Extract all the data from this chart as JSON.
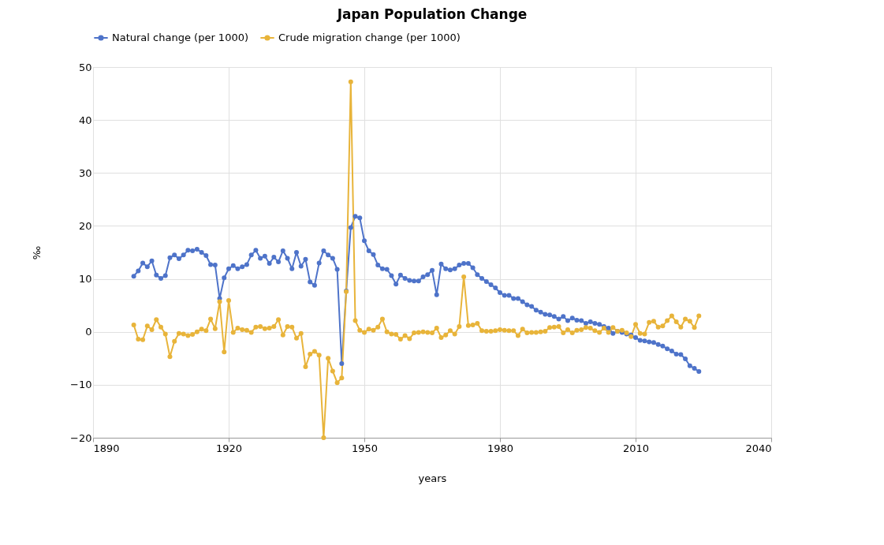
{
  "chart_data": {
    "type": "line",
    "title": "Japan Population Change",
    "xlabel": "years",
    "ylabel": "‰",
    "x": [
      1899,
      1900,
      1901,
      1902,
      1903,
      1904,
      1905,
      1906,
      1907,
      1908,
      1909,
      1910,
      1911,
      1912,
      1913,
      1914,
      1915,
      1916,
      1917,
      1918,
      1919,
      1920,
      1921,
      1922,
      1923,
      1924,
      1925,
      1926,
      1927,
      1928,
      1929,
      1930,
      1931,
      1932,
      1933,
      1934,
      1935,
      1936,
      1937,
      1938,
      1939,
      1940,
      1941,
      1942,
      1943,
      1944,
      1945,
      1946,
      1947,
      1948,
      1949,
      1950,
      1951,
      1952,
      1953,
      1954,
      1955,
      1956,
      1957,
      1958,
      1959,
      1960,
      1961,
      1962,
      1963,
      1964,
      1965,
      1966,
      1967,
      1968,
      1969,
      1970,
      1971,
      1972,
      1973,
      1974,
      1975,
      1976,
      1977,
      1978,
      1979,
      1980,
      1981,
      1982,
      1983,
      1984,
      1985,
      1986,
      1987,
      1988,
      1989,
      1990,
      1991,
      1992,
      1993,
      1994,
      1995,
      1996,
      1997,
      1998,
      1999,
      2000,
      2001,
      2002,
      2003,
      2004,
      2005,
      2006,
      2007,
      2008,
      2009,
      2010,
      2011,
      2012,
      2013,
      2014,
      2015,
      2016,
      2017,
      2018,
      2019,
      2020,
      2021,
      2022,
      2023,
      2024
    ],
    "series": [
      {
        "name": "Natural change (per 1000)",
        "color": "#4e73c9",
        "values": [
          10.5,
          11.5,
          13.0,
          12.3,
          13.4,
          10.7,
          10.1,
          10.6,
          14.0,
          14.5,
          13.8,
          14.5,
          15.4,
          15.3,
          15.6,
          15.0,
          14.4,
          12.7,
          12.6,
          6.3,
          10.2,
          11.9,
          12.5,
          11.9,
          12.3,
          12.7,
          14.5,
          15.4,
          13.9,
          14.3,
          12.9,
          14.1,
          13.2,
          15.3,
          13.9,
          11.9,
          15.0,
          12.4,
          13.7,
          9.4,
          8.8,
          13.0,
          15.3,
          14.5,
          13.9,
          11.8,
          -6.0,
          7.7,
          19.7,
          21.8,
          21.5,
          17.2,
          15.3,
          14.6,
          12.6,
          11.9,
          11.8,
          10.6,
          9.0,
          10.7,
          10.1,
          9.7,
          9.6,
          9.6,
          10.4,
          10.8,
          11.6,
          7.0,
          12.8,
          11.9,
          11.7,
          11.9,
          12.6,
          12.9,
          12.9,
          12.1,
          10.8,
          10.1,
          9.5,
          8.9,
          8.3,
          7.4,
          6.9,
          6.9,
          6.3,
          6.3,
          5.7,
          5.1,
          4.8,
          4.1,
          3.7,
          3.3,
          3.2,
          2.9,
          2.4,
          2.9,
          2.1,
          2.6,
          2.2,
          2.1,
          1.6,
          1.9,
          1.6,
          1.4,
          1.0,
          0.7,
          -0.3,
          0.1,
          -0.1,
          -0.4,
          -0.6,
          -1.1,
          -1.6,
          -1.7,
          -1.9,
          -2.0,
          -2.4,
          -2.7,
          -3.2,
          -3.6,
          -4.2,
          -4.3,
          -5.1,
          -6.4,
          -6.9,
          -7.5
        ]
      },
      {
        "name": "Crude migration change (per 1000)",
        "color": "#e8b43a",
        "values": [
          1.3,
          -1.4,
          -1.5,
          1.1,
          0.4,
          2.3,
          0.9,
          -0.4,
          -4.7,
          -1.8,
          -0.3,
          -0.4,
          -0.7,
          -0.5,
          0,
          0.5,
          0.2,
          2.4,
          0.6,
          5.7,
          -3.8,
          5.9,
          -0.1,
          0.7,
          0.4,
          0.3,
          -0.1,
          0.9,
          1.0,
          0.6,
          0.7,
          1.0,
          2.3,
          -0.6,
          1.0,
          0.9,
          -1.2,
          -0.3,
          -6.6,
          -4.2,
          -3.7,
          -4.4,
          -20,
          -5.0,
          -7.4,
          -9.6,
          -8.7,
          7.6,
          47.2,
          2.1,
          0.3,
          -0.1,
          0.5,
          0.3,
          0.9,
          2.4,
          0,
          -0.4,
          -0.5,
          -1.4,
          -0.7,
          -1.3,
          -0.2,
          -0.1,
          0,
          -0.1,
          -0.2,
          0.7,
          -1.1,
          -0.6,
          0.2,
          -0.4,
          1.0,
          10.4,
          1.2,
          1.3,
          1.6,
          0.2,
          0.1,
          0.1,
          0.2,
          0.4,
          0.3,
          0.2,
          0.2,
          -0.7,
          0.5,
          -0.2,
          -0.1,
          -0.1,
          0,
          0.1,
          0.8,
          0.9,
          1.0,
          -0.2,
          0.4,
          -0.2,
          0.3,
          0.4,
          0.8,
          0.7,
          0.2,
          -0.1,
          0.7,
          -0.1,
          0.8,
          0.1,
          0.3,
          -0.2,
          -0.9,
          1.4,
          -0.3,
          -0.4,
          1.8,
          2.0,
          0.9,
          1.1,
          2.1,
          3.0,
          1.9,
          0.9,
          2.4,
          2.0,
          0.8,
          3.0
        ]
      }
    ],
    "xlim": [
      1890,
      2040
    ],
    "xticks": [
      1890,
      1920,
      1950,
      1980,
      2010,
      2040
    ],
    "ylim": [
      -20,
      50
    ],
    "yticks": [
      -20,
      -10,
      0,
      10,
      20,
      30,
      40,
      50
    ],
    "grid": true,
    "legend": "top left",
    "marker": "circle",
    "line_style": "solid"
  }
}
